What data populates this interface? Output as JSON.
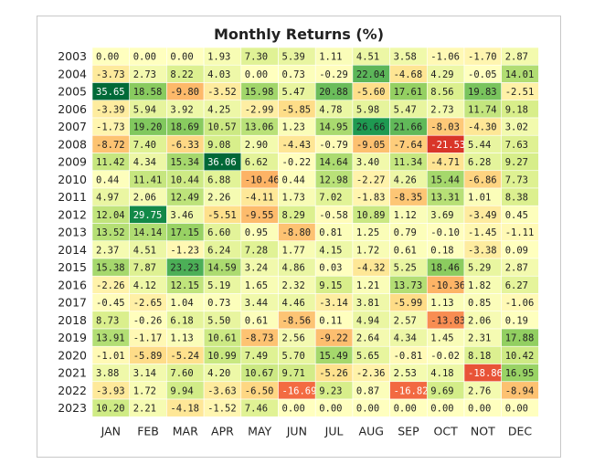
{
  "chart_data": {
    "type": "heatmap",
    "title": "Monthly Returns (%)",
    "xlabel": "",
    "ylabel": "",
    "columns": [
      "JAN",
      "FEB",
      "MAR",
      "APR",
      "MAY",
      "JUN",
      "JUL",
      "AUG",
      "SEP",
      "OCT",
      "NOT",
      "DEC"
    ],
    "rows": [
      "2003",
      "2004",
      "2005",
      "2006",
      "2007",
      "2008",
      "2009",
      "2010",
      "2011",
      "2012",
      "2013",
      "2014",
      "2015",
      "2016",
      "2017",
      "2018",
      "2019",
      "2020",
      "2021",
      "2022",
      "2023"
    ],
    "values": [
      [
        0.0,
        0.0,
        0.0,
        1.93,
        7.3,
        5.39,
        1.11,
        4.51,
        3.58,
        -1.06,
        -1.7,
        2.87
      ],
      [
        -3.73,
        2.73,
        8.22,
        4.03,
        0.0,
        0.73,
        -0.29,
        22.04,
        -4.68,
        4.29,
        -0.05,
        14.01
      ],
      [
        35.65,
        18.58,
        -9.8,
        -3.52,
        15.98,
        5.47,
        20.88,
        -5.6,
        17.61,
        8.56,
        19.83,
        -2.51
      ],
      [
        -3.39,
        5.94,
        3.92,
        4.25,
        -2.99,
        -5.85,
        4.78,
        5.98,
        5.47,
        2.73,
        11.74,
        9.18
      ],
      [
        -1.73,
        19.2,
        18.69,
        10.57,
        13.06,
        1.23,
        14.95,
        26.66,
        21.66,
        -8.03,
        -4.3,
        3.02
      ],
      [
        -8.72,
        7.4,
        -6.33,
        9.08,
        2.9,
        -4.43,
        -0.79,
        -9.05,
        -7.64,
        -21.53,
        5.44,
        7.63
      ],
      [
        11.42,
        4.34,
        15.34,
        36.06,
        6.62,
        -0.22,
        14.64,
        3.4,
        11.34,
        -4.71,
        6.28,
        9.27
      ],
      [
        0.44,
        11.41,
        10.44,
        6.88,
        -10.46,
        0.44,
        12.98,
        -2.27,
        4.26,
        15.44,
        -6.86,
        7.73
      ],
      [
        4.97,
        2.06,
        12.49,
        2.26,
        -4.11,
        1.73,
        7.02,
        -1.83,
        -8.35,
        13.31,
        1.01,
        8.38
      ],
      [
        12.04,
        29.75,
        3.46,
        -5.51,
        -9.55,
        8.29,
        -0.58,
        10.89,
        1.12,
        3.69,
        -3.49,
        0.45
      ],
      [
        13.52,
        14.14,
        17.15,
        6.6,
        0.95,
        -8.8,
        0.81,
        1.25,
        0.79,
        -0.1,
        -1.45,
        -1.11
      ],
      [
        2.37,
        4.51,
        -1.23,
        6.24,
        7.28,
        1.77,
        4.15,
        1.72,
        0.61,
        0.18,
        -3.38,
        0.09
      ],
      [
        15.38,
        7.87,
        23.23,
        14.59,
        3.24,
        4.86,
        0.03,
        -4.32,
        5.25,
        18.46,
        5.29,
        2.87
      ],
      [
        -2.26,
        4.12,
        12.15,
        5.19,
        1.65,
        2.32,
        9.15,
        1.21,
        13.73,
        -10.36,
        1.82,
        6.27
      ],
      [
        -0.45,
        -2.65,
        1.04,
        0.73,
        3.44,
        4.46,
        -3.14,
        3.81,
        -5.99,
        1.13,
        0.85,
        -1.06
      ],
      [
        8.73,
        -0.26,
        6.18,
        5.5,
        0.61,
        -8.56,
        0.11,
        4.94,
        2.57,
        -13.83,
        2.06,
        0.19
      ],
      [
        13.91,
        -1.17,
        1.13,
        10.61,
        -8.73,
        2.56,
        -9.22,
        2.64,
        4.34,
        1.45,
        2.31,
        17.88
      ],
      [
        -1.01,
        -5.89,
        -5.24,
        10.99,
        7.49,
        5.7,
        15.49,
        5.65,
        -0.81,
        -0.02,
        8.18,
        10.42
      ],
      [
        3.88,
        3.14,
        7.6,
        4.2,
        10.67,
        9.71,
        -5.26,
        -2.36,
        2.53,
        4.18,
        -18.86,
        16.95
      ],
      [
        -3.93,
        1.72,
        9.94,
        -3.63,
        -6.5,
        -16.69,
        9.23,
        0.87,
        -16.82,
        9.69,
        2.76,
        -8.94
      ],
      [
        10.2,
        2.21,
        -4.18,
        -1.52,
        7.46,
        0.0,
        0.0,
        0.0,
        0.0,
        0.0,
        0.0,
        0.0
      ]
    ],
    "color_scale": {
      "neutral": "#ffffbf",
      "positive_light": "#d9ef8b",
      "positive_mid": "#91cf60",
      "positive_dark": "#1a9850",
      "positive_darkest": "#006837",
      "negative_light": "#fee08b",
      "negative_mid": "#fdae61",
      "negative_dark": "#f46d43",
      "negative_darkest": "#d73027"
    },
    "grid": false,
    "legend": "none"
  }
}
